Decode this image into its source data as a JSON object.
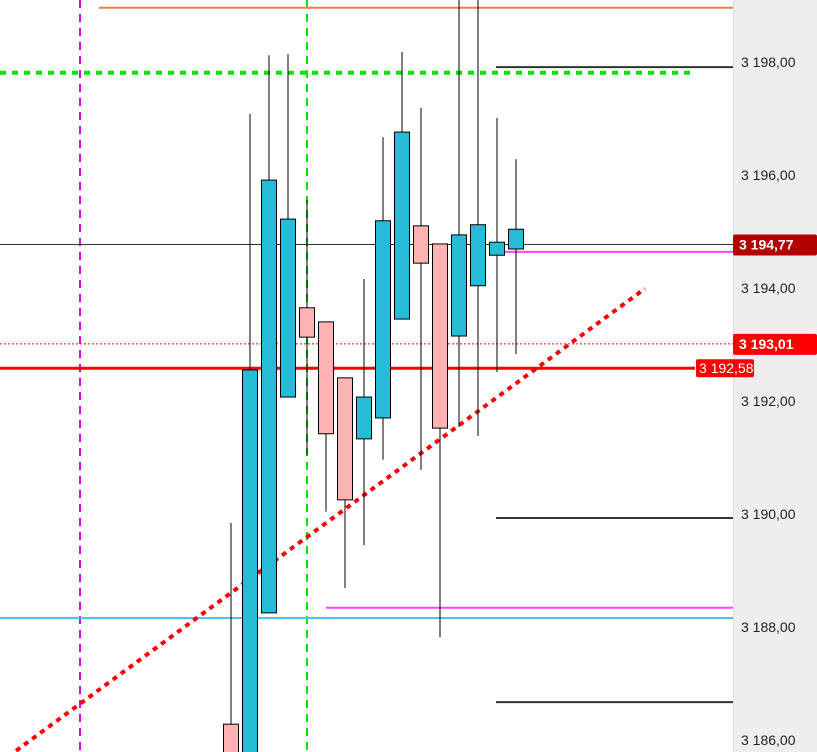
{
  "chart_data": {
    "type": "candlestick",
    "title": "",
    "ylim": [
      3185.6,
      3199.1
    ],
    "y_ticks": [
      "3 186,00",
      "3 188,00",
      "3 190,00",
      "3 192,00",
      "3 194,00",
      "3 196,00",
      "3 198,00"
    ],
    "y_tick_values": [
      3186,
      3188,
      3190,
      3192,
      3194,
      3196,
      3198
    ],
    "colors": {
      "up": "#26bcd7",
      "down": "#ffb3b3",
      "outline": "#000000"
    },
    "candles": [
      {
        "o": 3186.28,
        "h": 3189.84,
        "l": 3185.5,
        "c": 3185.6
      },
      {
        "o": 3185.6,
        "h": 3197.08,
        "l": 3185.5,
        "c": 3192.55
      },
      {
        "o": 3188.25,
        "h": 3198.12,
        "l": 3188.25,
        "c": 3195.91
      },
      {
        "o": 3192.07,
        "h": 3198.14,
        "l": 3192.07,
        "c": 3195.22
      },
      {
        "o": 3193.65,
        "h": 3195.56,
        "l": 3191.04,
        "c": 3193.13
      },
      {
        "o": 3193.4,
        "h": 3193.4,
        "l": 3190.04,
        "c": 3191.42
      },
      {
        "o": 3192.41,
        "h": 3192.41,
        "l": 3188.69,
        "c": 3190.25
      },
      {
        "o": 3191.33,
        "h": 3194.16,
        "l": 3189.45,
        "c": 3192.07
      },
      {
        "o": 3191.7,
        "h": 3196.67,
        "l": 3190.96,
        "c": 3195.19
      },
      {
        "o": 3193.45,
        "h": 3198.18,
        "l": 3193.45,
        "c": 3196.76
      },
      {
        "o": 3195.1,
        "h": 3197.19,
        "l": 3190.78,
        "c": 3194.44
      },
      {
        "o": 3194.78,
        "h": 3194.78,
        "l": 3187.82,
        "c": 3191.52
      },
      {
        "o": 3193.15,
        "h": 3199.1,
        "l": 3191.54,
        "c": 3194.94
      },
      {
        "o": 3194.04,
        "h": 3199.1,
        "l": 3191.38,
        "c": 3195.12
      },
      {
        "o": 3194.58,
        "h": 3197.01,
        "l": 3192.51,
        "c": 3194.81
      },
      {
        "o": 3194.69,
        "h": 3196.28,
        "l": 3192.83,
        "c": 3195.04
      }
    ],
    "levels": [
      {
        "price": 3198.96,
        "color": "#f4794f",
        "style": "solid",
        "span": "partial-left"
      },
      {
        "price": 3197.81,
        "color": "#00e600",
        "style": "dotted-thick",
        "span": "left"
      },
      {
        "price": 3197.91,
        "color": "#333333",
        "style": "solid",
        "span": "right"
      },
      {
        "price": 3194.77,
        "color": "#333333",
        "style": "thin",
        "span": "full"
      },
      {
        "price": 3194.64,
        "color": "#ff44ff",
        "style": "solid",
        "span": "right"
      },
      {
        "price": 3193.01,
        "color": "#ff0000",
        "style": "dotted",
        "span": "full"
      },
      {
        "price": 3192.58,
        "color": "#ff0000",
        "style": "thick",
        "span": "left"
      },
      {
        "price": 3189.93,
        "color": "#333333",
        "style": "solid",
        "span": "right"
      },
      {
        "price": 3188.34,
        "color": "#ff44ff",
        "style": "solid",
        "span": "mid"
      },
      {
        "price": 3188.16,
        "color": "#4fc3f7",
        "style": "solid",
        "span": "full"
      },
      {
        "price": 3186.67,
        "color": "#333333",
        "style": "solid",
        "span": "right"
      }
    ],
    "trendline": {
      "from_price": 3185.6,
      "to_price": 3193.99,
      "color": "#ff0000"
    },
    "price_tags": [
      {
        "label": "3 194,77",
        "price": 3194.77,
        "color": "#b30000"
      },
      {
        "label": "3 193,01",
        "price": 3193.01,
        "color": "#ff0000"
      },
      {
        "label": "3 192,58",
        "price": 3192.58,
        "color": "#ff0000"
      }
    ]
  }
}
